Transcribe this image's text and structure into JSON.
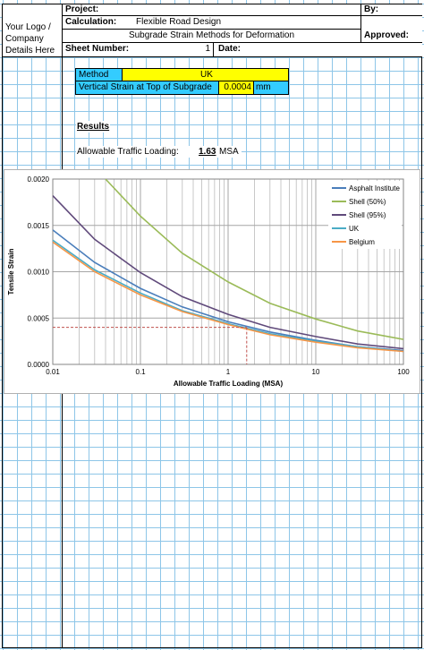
{
  "header": {
    "logo_text": "Your Logo / Company Details Here",
    "project_label": "Project:",
    "calculation_label": "Calculation:",
    "calculation_value": "Flexible Road Design",
    "subtitle": "Subgrade Strain Methods for Deformation",
    "sheet_number_label": "Sheet Number:",
    "sheet_number_value": "1",
    "date_label": "Date:",
    "by_label": "By:",
    "approved_label": "Approved:"
  },
  "inputs": {
    "method_label": "Method",
    "method_value": "UK",
    "strain_label": "Vertical Strain at Top of Subgrade",
    "strain_value": "0.0004",
    "strain_unit": "mm"
  },
  "results": {
    "heading": "Results",
    "traffic_label": "Allowable Traffic Loading:",
    "traffic_value": "1.63",
    "traffic_unit": "MSA"
  },
  "colors": {
    "input_label_bg": "#33ccff",
    "input_value_bg": "#ffff00",
    "grid_line": "#8ec6e8"
  },
  "chart_data": {
    "type": "line",
    "xlabel": "Allowable Traffic Loading (MSA)",
    "ylabel": "Tensile Strain",
    "x_scale": "log",
    "xlim": [
      0.01,
      100
    ],
    "ylim": [
      0,
      0.002
    ],
    "x_ticks": [
      "0.01",
      "0.1",
      "1",
      "10",
      "100"
    ],
    "y_ticks": [
      "0.0000",
      "0.0005",
      "0.0010",
      "0.0015",
      "0.0020"
    ],
    "grid": true,
    "legend_position": "top-right",
    "series": [
      {
        "name": "Asphalt Institute",
        "color": "#4a7ebb",
        "x": [
          0.01,
          0.03,
          0.1,
          0.3,
          1,
          3,
          10,
          30,
          100
        ],
        "y": [
          0.00145,
          0.0011,
          0.00082,
          0.00062,
          0.00046,
          0.00035,
          0.00026,
          0.00019,
          0.00015
        ]
      },
      {
        "name": "Shell (50%)",
        "color": "#9bbb59",
        "x": [
          0.04,
          0.1,
          0.3,
          1,
          3,
          10,
          30,
          100
        ],
        "y": [
          0.002,
          0.0016,
          0.0012,
          0.00089,
          0.00066,
          0.00049,
          0.00036,
          0.00027
        ]
      },
      {
        "name": "Shell (95%)",
        "color": "#604a7b",
        "x": [
          0.01,
          0.03,
          0.1,
          0.3,
          1,
          3,
          10,
          30,
          100
        ],
        "y": [
          0.00182,
          0.00135,
          0.00099,
          0.00073,
          0.00054,
          0.0004,
          0.0003,
          0.00022,
          0.00017
        ]
      },
      {
        "name": "UK",
        "color": "#4bacc6",
        "x": [
          0.01,
          0.03,
          0.1,
          0.3,
          1,
          3,
          10,
          30,
          100
        ],
        "y": [
          0.00134,
          0.00102,
          0.00077,
          0.00058,
          0.00044,
          0.00033,
          0.00025,
          0.00019,
          0.00014
        ]
      },
      {
        "name": "Belgium",
        "color": "#f79646",
        "x": [
          0.01,
          0.03,
          0.1,
          0.3,
          1,
          3,
          10,
          30,
          100
        ],
        "y": [
          0.00132,
          0.001,
          0.00075,
          0.00057,
          0.00043,
          0.00032,
          0.00024,
          0.00018,
          0.00014
        ]
      }
    ],
    "marker": {
      "x": 1.63,
      "y": 0.0004,
      "color": "#c0504d",
      "style": "dashed"
    }
  }
}
